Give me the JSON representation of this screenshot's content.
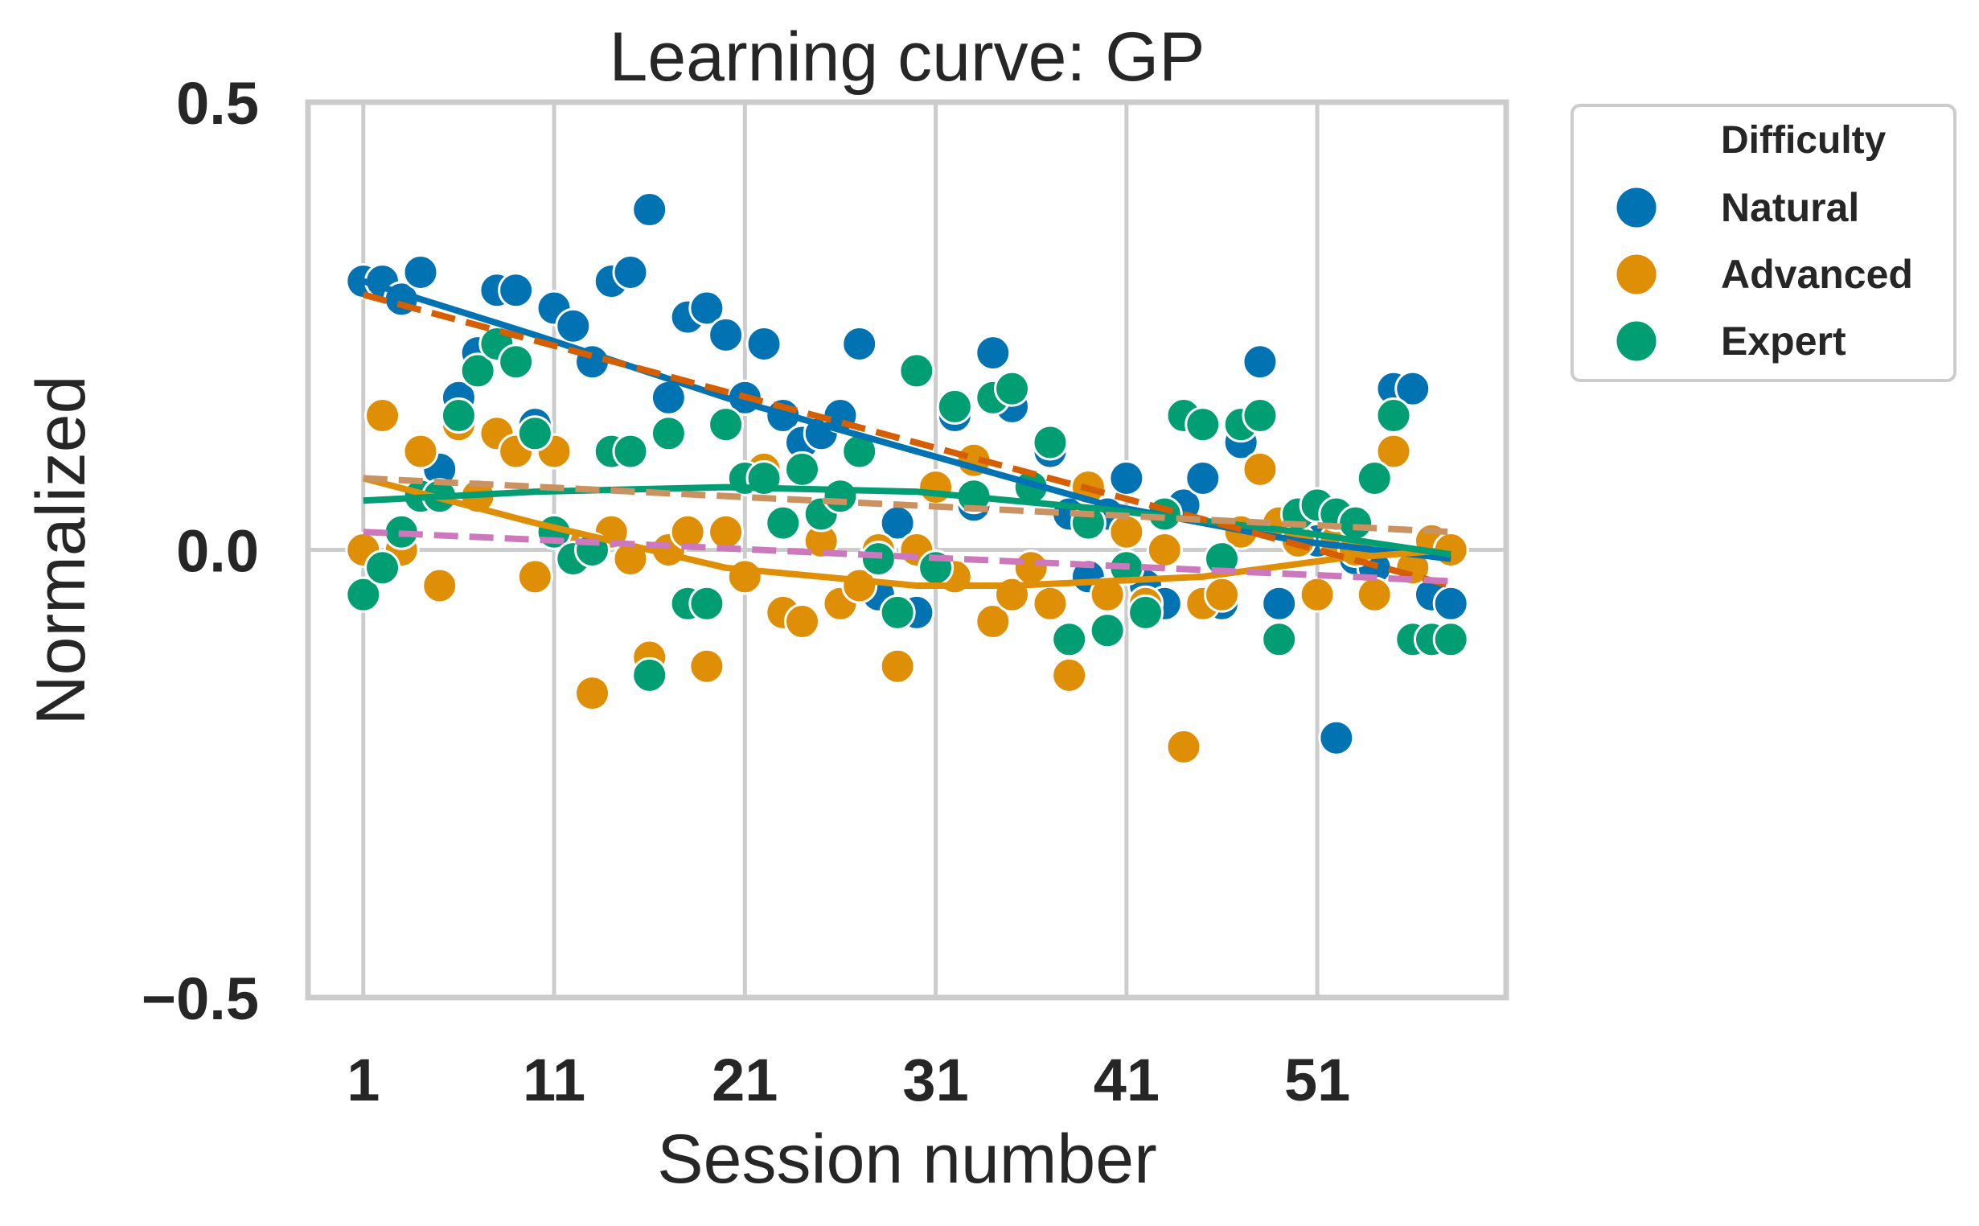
{
  "chart_data": {
    "type": "scatter",
    "title": "Learning curve: GP",
    "xlabel": "Session number",
    "ylabel": "Normalized",
    "xlim": [
      -1.9,
      60.9
    ],
    "ylim": [
      -0.5,
      0.5
    ],
    "xticks": [
      1,
      11,
      21,
      31,
      41,
      51
    ],
    "xtick_labels": [
      "1",
      "11",
      "21",
      "31",
      "41",
      "51"
    ],
    "yticks": [
      -0.5,
      0.0,
      0.5
    ],
    "ytick_labels": [
      "−0.5",
      "0.0",
      "0.5"
    ],
    "grid": true,
    "legend": {
      "title": "Difficulty",
      "placement": "outside-upper-right",
      "entries": [
        "Natural",
        "Advanced",
        "Expert"
      ]
    },
    "series": [
      {
        "name": "Natural",
        "color": "#0173b2",
        "points": [
          [
            1,
            0.3
          ],
          [
            2,
            0.3
          ],
          [
            3,
            0.28
          ],
          [
            4,
            0.31
          ],
          [
            5,
            0.09
          ],
          [
            6,
            0.17
          ],
          [
            7,
            0.22
          ],
          [
            8,
            0.29
          ],
          [
            9,
            0.29
          ],
          [
            10,
            0.14
          ],
          [
            11,
            0.27
          ],
          [
            12,
            0.25
          ],
          [
            13,
            0.21
          ],
          [
            14,
            0.3
          ],
          [
            15,
            0.31
          ],
          [
            16,
            0.38
          ],
          [
            17,
            0.17
          ],
          [
            18,
            0.26
          ],
          [
            19,
            0.27
          ],
          [
            20,
            0.24
          ],
          [
            21,
            0.17
          ],
          [
            22,
            0.23
          ],
          [
            23,
            0.15
          ],
          [
            24,
            0.12
          ],
          [
            25,
            0.13
          ],
          [
            26,
            0.15
          ],
          [
            27,
            0.23
          ],
          [
            28,
            -0.05
          ],
          [
            29,
            0.03
          ],
          [
            30,
            -0.07
          ],
          [
            31,
            -0.02
          ],
          [
            32,
            0.15
          ],
          [
            33,
            0.05
          ],
          [
            34,
            0.22
          ],
          [
            35,
            0.16
          ],
          [
            36,
            0.07
          ],
          [
            37,
            0.11
          ],
          [
            38,
            0.04
          ],
          [
            39,
            -0.03
          ],
          [
            40,
            0.04
          ],
          [
            41,
            0.08
          ],
          [
            42,
            -0.04
          ],
          [
            43,
            -0.06
          ],
          [
            44,
            0.05
          ],
          [
            45,
            0.08
          ],
          [
            46,
            -0.06
          ],
          [
            47,
            0.12
          ],
          [
            48,
            0.21
          ],
          [
            49,
            -0.06
          ],
          [
            50,
            0.04
          ],
          [
            51,
            0.01
          ],
          [
            52,
            -0.21
          ],
          [
            53,
            -0.01
          ],
          [
            54,
            -0.02
          ],
          [
            55,
            0.18
          ],
          [
            56,
            0.18
          ],
          [
            57,
            -0.05
          ],
          [
            58,
            -0.06
          ]
        ]
      },
      {
        "name": "Advanced",
        "color": "#de8f05",
        "points": [
          [
            1,
            0.0
          ],
          [
            2,
            0.15
          ],
          [
            3,
            0.0
          ],
          [
            4,
            0.11
          ],
          [
            5,
            -0.04
          ],
          [
            6,
            0.14
          ],
          [
            7,
            0.06
          ],
          [
            8,
            0.13
          ],
          [
            9,
            0.11
          ],
          [
            10,
            -0.03
          ],
          [
            11,
            0.11
          ],
          [
            12,
            0.0
          ],
          [
            13,
            -0.16
          ],
          [
            14,
            0.02
          ],
          [
            15,
            -0.01
          ],
          [
            16,
            -0.12
          ],
          [
            17,
            0.0
          ],
          [
            18,
            0.02
          ],
          [
            19,
            -0.13
          ],
          [
            20,
            0.02
          ],
          [
            21,
            -0.03
          ],
          [
            22,
            0.09
          ],
          [
            23,
            -0.07
          ],
          [
            24,
            -0.08
          ],
          [
            25,
            0.01
          ],
          [
            26,
            -0.06
          ],
          [
            27,
            -0.04
          ],
          [
            28,
            0.0
          ],
          [
            29,
            -0.13
          ],
          [
            30,
            0.0
          ],
          [
            31,
            0.07
          ],
          [
            32,
            -0.03
          ],
          [
            33,
            0.1
          ],
          [
            34,
            -0.08
          ],
          [
            35,
            -0.05
          ],
          [
            36,
            -0.02
          ],
          [
            37,
            -0.06
          ],
          [
            38,
            -0.14
          ],
          [
            39,
            0.07
          ],
          [
            40,
            -0.05
          ],
          [
            41,
            0.02
          ],
          [
            42,
            -0.06
          ],
          [
            43,
            0.0
          ],
          [
            44,
            -0.22
          ],
          [
            45,
            -0.06
          ],
          [
            46,
            -0.05
          ],
          [
            47,
            0.02
          ],
          [
            48,
            0.09
          ],
          [
            49,
            0.03
          ],
          [
            50,
            0.01
          ],
          [
            51,
            -0.05
          ],
          [
            52,
            0.01
          ],
          [
            53,
            0.0
          ],
          [
            54,
            -0.05
          ],
          [
            55,
            0.11
          ],
          [
            56,
            -0.02
          ],
          [
            57,
            0.01
          ],
          [
            58,
            0.0
          ]
        ]
      },
      {
        "name": "Expert",
        "color": "#029e73",
        "points": [
          [
            1,
            -0.05
          ],
          [
            2,
            -0.02
          ],
          [
            3,
            0.02
          ],
          [
            4,
            0.06
          ],
          [
            5,
            0.06
          ],
          [
            6,
            0.15
          ],
          [
            7,
            0.2
          ],
          [
            8,
            0.23
          ],
          [
            9,
            0.21
          ],
          [
            10,
            0.13
          ],
          [
            11,
            0.02
          ],
          [
            12,
            -0.01
          ],
          [
            13,
            0.0
          ],
          [
            14,
            0.11
          ],
          [
            15,
            0.11
          ],
          [
            16,
            -0.14
          ],
          [
            17,
            0.13
          ],
          [
            18,
            -0.06
          ],
          [
            19,
            -0.06
          ],
          [
            20,
            0.14
          ],
          [
            21,
            0.08
          ],
          [
            22,
            0.08
          ],
          [
            23,
            0.03
          ],
          [
            24,
            0.09
          ],
          [
            25,
            0.04
          ],
          [
            26,
            0.06
          ],
          [
            27,
            0.11
          ],
          [
            28,
            -0.01
          ],
          [
            29,
            -0.07
          ],
          [
            30,
            0.2
          ],
          [
            31,
            -0.02
          ],
          [
            32,
            0.16
          ],
          [
            33,
            0.06
          ],
          [
            34,
            0.17
          ],
          [
            35,
            0.18
          ],
          [
            36,
            0.07
          ],
          [
            37,
            0.12
          ],
          [
            38,
            -0.1
          ],
          [
            39,
            0.03
          ],
          [
            40,
            -0.09
          ],
          [
            41,
            -0.02
          ],
          [
            42,
            -0.07
          ],
          [
            43,
            0.04
          ],
          [
            44,
            0.15
          ],
          [
            45,
            0.14
          ],
          [
            46,
            -0.01
          ],
          [
            47,
            0.14
          ],
          [
            48,
            0.15
          ],
          [
            49,
            -0.1
          ],
          [
            50,
            0.04
          ],
          [
            51,
            0.05
          ],
          [
            52,
            0.04
          ],
          [
            53,
            0.03
          ],
          [
            54,
            0.08
          ],
          [
            55,
            0.15
          ],
          [
            56,
            -0.1
          ],
          [
            57,
            -0.1
          ],
          [
            58,
            -0.1
          ]
        ]
      }
    ],
    "trend_lines": [
      {
        "color": "#0173b2",
        "style": "solid",
        "points": [
          [
            1,
            0.3
          ],
          [
            10,
            0.24
          ],
          [
            20,
            0.17
          ],
          [
            30,
            0.11
          ],
          [
            40,
            0.05
          ],
          [
            50,
            0.01
          ],
          [
            58,
            -0.01
          ]
        ]
      },
      {
        "color": "#de8f05",
        "style": "solid",
        "points": [
          [
            1,
            0.08
          ],
          [
            10,
            0.03
          ],
          [
            20,
            -0.02
          ],
          [
            30,
            -0.04
          ],
          [
            35,
            -0.04
          ],
          [
            45,
            -0.03
          ],
          [
            52,
            -0.01
          ],
          [
            58,
            0.0
          ]
        ]
      },
      {
        "color": "#029e73",
        "style": "solid",
        "points": [
          [
            1,
            0.055
          ],
          [
            10,
            0.065
          ],
          [
            20,
            0.07
          ],
          [
            30,
            0.065
          ],
          [
            40,
            0.045
          ],
          [
            50,
            0.02
          ],
          [
            58,
            -0.005
          ]
        ]
      },
      {
        "color": "#d55e00",
        "style": "dashed",
        "points": [
          [
            1,
            0.285
          ],
          [
            58,
            -0.04
          ]
        ]
      },
      {
        "color": "#ca9161",
        "style": "dashed",
        "points": [
          [
            1,
            0.08
          ],
          [
            58,
            0.02
          ]
        ]
      },
      {
        "color": "#cc78bc",
        "style": "dashed",
        "points": [
          [
            1,
            0.02
          ],
          [
            58,
            -0.035
          ]
        ]
      }
    ]
  }
}
